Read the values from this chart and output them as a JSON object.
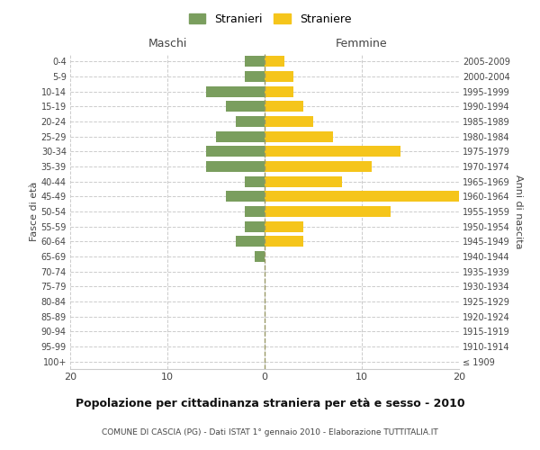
{
  "age_groups": [
    "100+",
    "95-99",
    "90-94",
    "85-89",
    "80-84",
    "75-79",
    "70-74",
    "65-69",
    "60-64",
    "55-59",
    "50-54",
    "45-49",
    "40-44",
    "35-39",
    "30-34",
    "25-29",
    "20-24",
    "15-19",
    "10-14",
    "5-9",
    "0-4"
  ],
  "birth_years": [
    "≤ 1909",
    "1910-1914",
    "1915-1919",
    "1920-1924",
    "1925-1929",
    "1930-1934",
    "1935-1939",
    "1940-1944",
    "1945-1949",
    "1950-1954",
    "1955-1959",
    "1960-1964",
    "1965-1969",
    "1970-1974",
    "1975-1979",
    "1980-1984",
    "1985-1989",
    "1990-1994",
    "1995-1999",
    "2000-2004",
    "2005-2009"
  ],
  "maschi": [
    0,
    0,
    0,
    0,
    0,
    0,
    0,
    1,
    3,
    2,
    2,
    4,
    2,
    6,
    6,
    5,
    3,
    4,
    6,
    2,
    2
  ],
  "femmine": [
    0,
    0,
    0,
    0,
    0,
    0,
    0,
    0,
    4,
    4,
    13,
    20,
    8,
    11,
    14,
    7,
    5,
    4,
    3,
    3,
    2
  ],
  "maschi_color": "#7a9e5e",
  "femmine_color": "#f5c51b",
  "background_color": "#ffffff",
  "grid_color": "#cccccc",
  "dashed_line_color": "#999966",
  "title": "Popolazione per cittadinanza straniera per età e sesso - 2010",
  "subtitle": "COMUNE DI CASCIA (PG) - Dati ISTAT 1° gennaio 2010 - Elaborazione TUTTITALIA.IT",
  "left_label": "Maschi",
  "right_label": "Femmine",
  "ylabel_left": "Fasce di età",
  "ylabel_right": "Anni di nascita",
  "legend_stranieri": "Stranieri",
  "legend_straniere": "Straniere",
  "xlim": 20
}
